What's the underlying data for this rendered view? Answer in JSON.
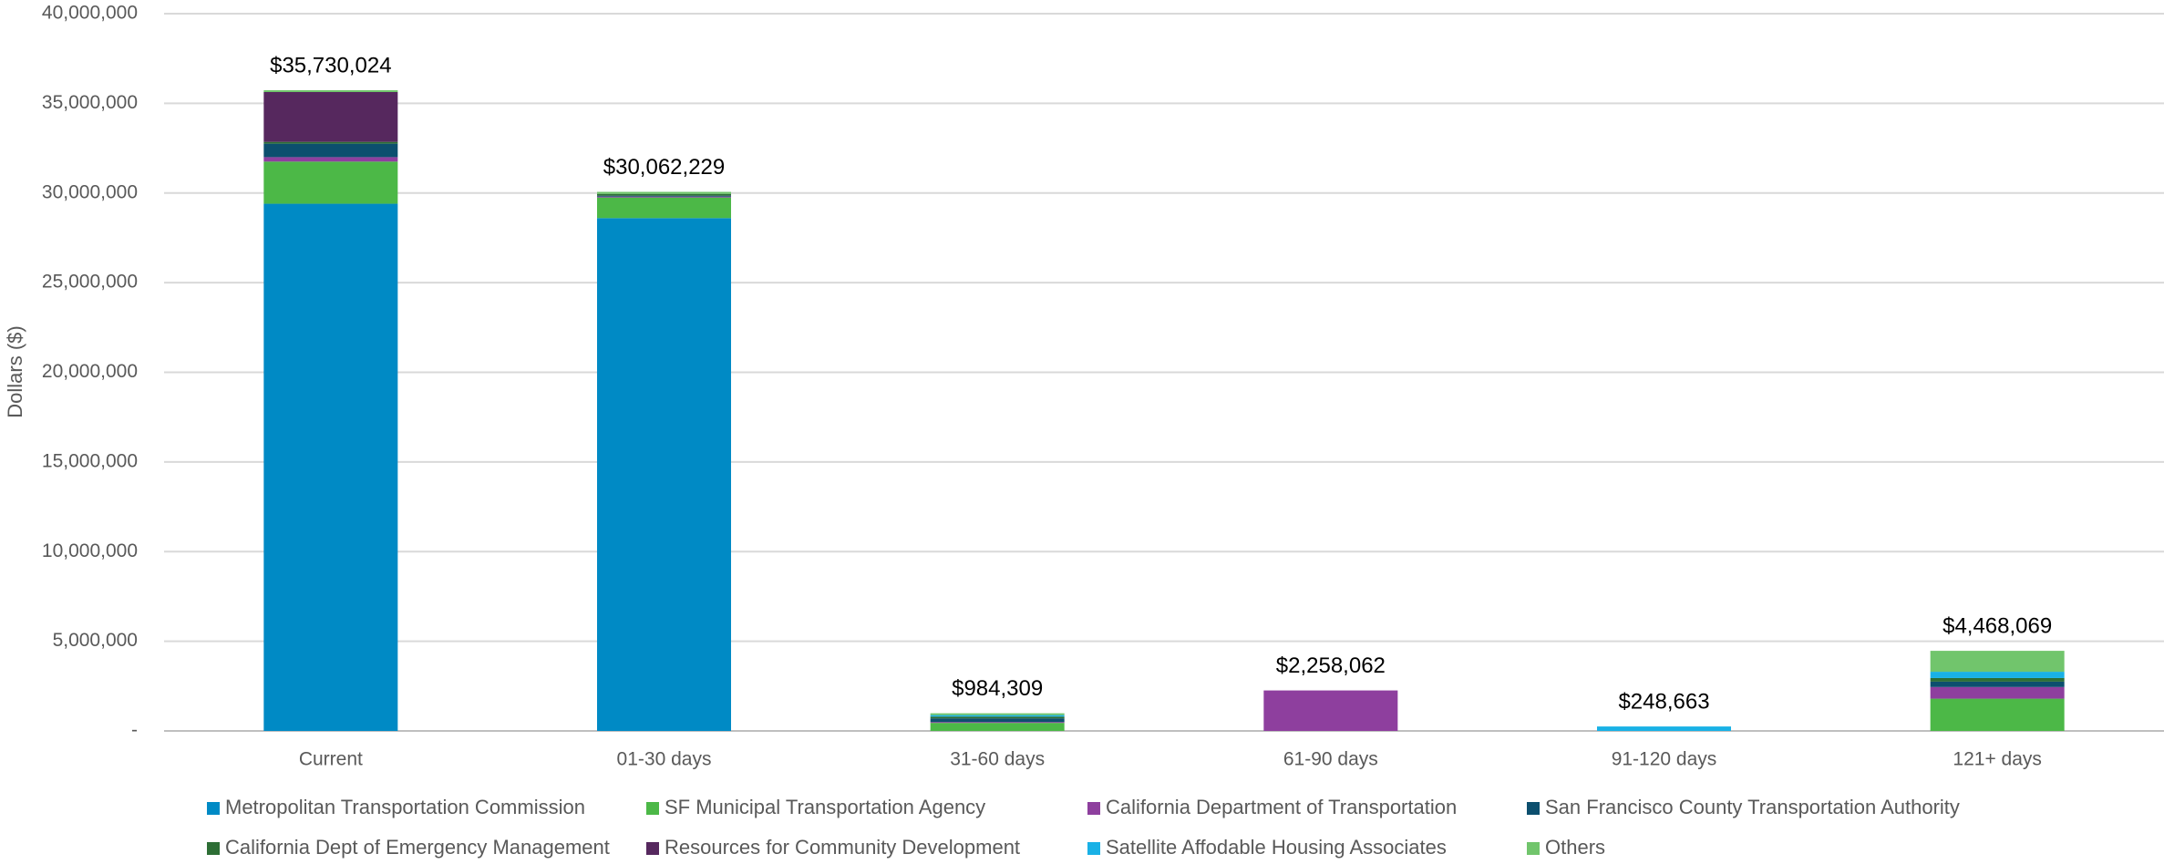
{
  "chart_data": {
    "type": "stacked-bar",
    "ylabel": "Dollars ($)",
    "categories": [
      "Current",
      "01-30 days",
      "31-60 days",
      "61-90 days",
      "91-120 days",
      "121+ days"
    ],
    "series": [
      {
        "name": "Metropolitan Transportation Commission",
        "color": "#008ac5",
        "values": [
          29400000,
          28600000,
          0,
          0,
          0,
          0
        ]
      },
      {
        "name": "SF Municipal Transportation Agency",
        "color": "#4cb847",
        "values": [
          2350000,
          1150000,
          450000,
          0,
          0,
          1800000
        ]
      },
      {
        "name": "California Department of Transportation",
        "color": "#8e3f9e",
        "values": [
          250000,
          50000,
          50000,
          2258062,
          0,
          650000
        ]
      },
      {
        "name": "San Francisco County Transportation Authority",
        "color": "#0c4f6e",
        "values": [
          750000,
          50000,
          200000,
          0,
          0,
          300000
        ]
      },
      {
        "name": "California Dept of Emergency Management",
        "color": "#2d6e35",
        "values": [
          100000,
          100000,
          100000,
          0,
          0,
          200000
        ]
      },
      {
        "name": "Resources for Community Development",
        "color": "#56285e",
        "values": [
          2780000,
          0,
          0,
          0,
          0,
          0
        ]
      },
      {
        "name": "Satellite Affodable Housing Associates",
        "color": "#19b1e6",
        "values": [
          0,
          0,
          84309,
          0,
          248663,
          350000
        ]
      },
      {
        "name": "Others",
        "color": "#71c56c",
        "values": [
          100024,
          112229,
          100000,
          0,
          0,
          1168069
        ]
      }
    ],
    "totals": [
      35730024,
      30062229,
      984309,
      2258062,
      248663,
      4468069
    ],
    "total_labels": [
      "$35,730,024",
      "$30,062,229",
      "$984,309",
      "$2,258,062",
      "$248,663",
      "$4,468,069"
    ],
    "ylim": [
      0,
      40000000
    ],
    "yticks": [
      {
        "value": 0,
        "label": "-"
      },
      {
        "value": 5000000,
        "label": "5,000,000"
      },
      {
        "value": 10000000,
        "label": "10,000,000"
      },
      {
        "value": 15000000,
        "label": "15,000,000"
      },
      {
        "value": 20000000,
        "label": "20,000,000"
      },
      {
        "value": 25000000,
        "label": "25,000,000"
      },
      {
        "value": 30000000,
        "label": "30,000,000"
      },
      {
        "value": 35000000,
        "label": "35,000,000"
      },
      {
        "value": 40000000,
        "label": "40,000,000"
      }
    ],
    "grid": true
  }
}
